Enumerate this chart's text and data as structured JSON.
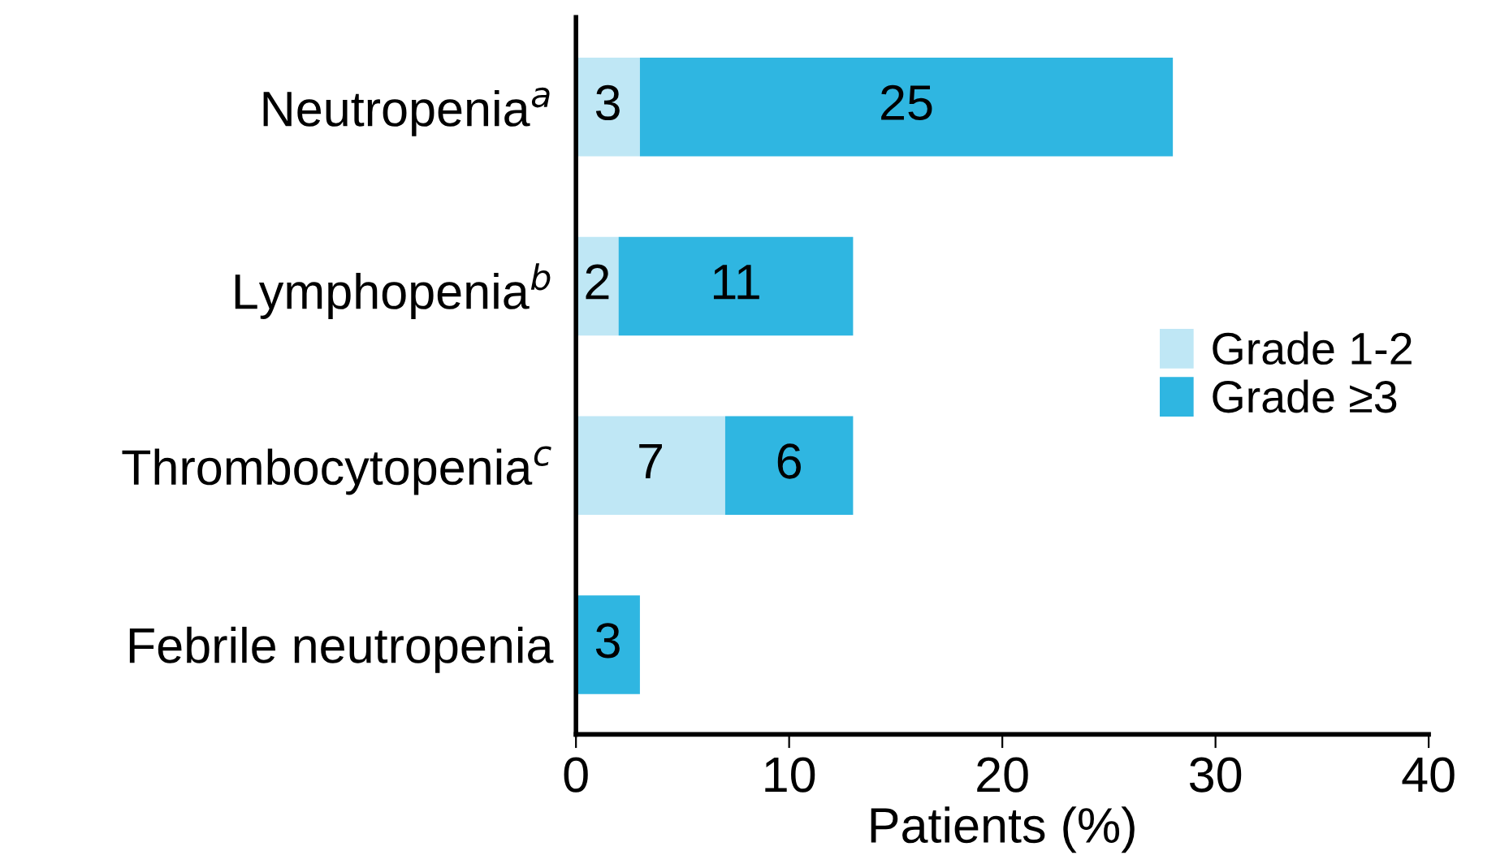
{
  "chart_data": {
    "type": "bar",
    "orientation": "horizontal",
    "stacked": true,
    "categories": [
      "Neutropenia$^{a}$",
      "Lymphopenia$^{b}$",
      "Thrombocytopenia$^{c}$",
      "Febrile neutropenia"
    ],
    "series": [
      {
        "name": "Grade 1-2",
        "color": "#bfe7f5",
        "values": [
          3,
          2,
          7,
          0
        ],
        "value_labels": [
          "3",
          "2",
          "7",
          null
        ]
      },
      {
        "name": "Grade ≥3",
        "color": "#2fb6e1",
        "values": [
          25,
          11,
          6,
          3
        ],
        "value_labels": [
          "25",
          "11",
          "6",
          "3"
        ]
      }
    ],
    "xlabel": "Patients (%)",
    "xlim": [
      0,
      40
    ],
    "xticks": [
      0,
      10,
      20,
      30,
      40
    ],
    "legend": "right",
    "grid": false
  }
}
